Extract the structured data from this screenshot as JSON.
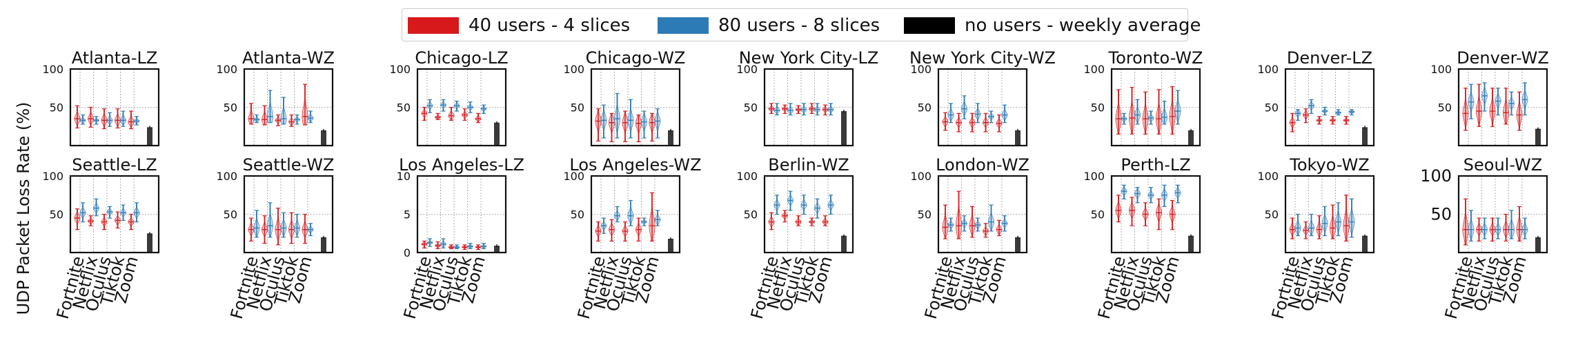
{
  "legend": [
    {
      "label": "40 users - 4 slices",
      "color": "#d7191c"
    },
    {
      "label": "80 users - 8 slices",
      "color": "#2c7bb6"
    },
    {
      "label": "no users - weekly average",
      "color": "#000000"
    }
  ],
  "ylabel": "UDP Packet Loss Rate (%)",
  "chart_data": {
    "type": "violin",
    "categories": [
      "Fortnite",
      "Netflix",
      "Oculus",
      "Tiktok",
      "Zoom"
    ],
    "ylabel": "UDP Packet Loss Rate (%)",
    "grid": true,
    "legend_position": "top-center",
    "panels": [
      {
        "title": "Atlanta-LZ",
        "ylim": [
          0,
          100
        ],
        "yticks": [
          50,
          100
        ],
        "s40": [
          [
            23,
            52,
            35
          ],
          [
            24,
            50,
            35
          ],
          [
            22,
            48,
            33
          ],
          [
            23,
            48,
            33
          ],
          [
            22,
            45,
            31
          ]
        ],
        "s80": [
          [
            28,
            40,
            33
          ],
          [
            28,
            38,
            33
          ],
          [
            25,
            43,
            33
          ],
          [
            25,
            45,
            33
          ],
          [
            27,
            38,
            32
          ]
        ],
        "baseline": 24
      },
      {
        "title": "Atlanta-WZ",
        "ylim": [
          0,
          100
        ],
        "yticks": [
          50,
          100
        ],
        "s40": [
          [
            28,
            55,
            35
          ],
          [
            27,
            52,
            34
          ],
          [
            26,
            40,
            33
          ],
          [
            25,
            40,
            31
          ],
          [
            27,
            80,
            38
          ]
        ],
        "s80": [
          [
            30,
            40,
            34
          ],
          [
            30,
            72,
            38
          ],
          [
            28,
            63,
            35
          ],
          [
            28,
            40,
            34
          ],
          [
            30,
            45,
            36
          ]
        ],
        "baseline": 20
      },
      {
        "title": "Chicago-LZ",
        "ylim": [
          0,
          100
        ],
        "yticks": [
          50,
          100
        ],
        "s40": [
          [
            33,
            50,
            42
          ],
          [
            34,
            42,
            37
          ],
          [
            33,
            50,
            39
          ],
          [
            33,
            48,
            40
          ],
          [
            30,
            42,
            35
          ]
        ],
        "s80": [
          [
            43,
            60,
            52
          ],
          [
            45,
            60,
            53
          ],
          [
            45,
            58,
            52
          ],
          [
            43,
            57,
            50
          ],
          [
            42,
            53,
            48
          ]
        ],
        "baseline": 30
      },
      {
        "title": "Chicago-WZ",
        "ylim": [
          0,
          100
        ],
        "yticks": [
          50,
          100
        ],
        "s40": [
          [
            6,
            48,
            32
          ],
          [
            5,
            42,
            30
          ],
          [
            5,
            45,
            30
          ],
          [
            5,
            40,
            29
          ],
          [
            6,
            42,
            30
          ]
        ],
        "s80": [
          [
            10,
            53,
            33
          ],
          [
            10,
            68,
            35
          ],
          [
            10,
            60,
            33
          ],
          [
            10,
            45,
            31
          ],
          [
            10,
            48,
            32
          ]
        ],
        "baseline": 20
      },
      {
        "title": "New York City-LZ",
        "ylim": [
          0,
          100
        ],
        "yticks": [
          50,
          100
        ],
        "s40": [
          [
            42,
            55,
            48
          ],
          [
            42,
            53,
            48
          ],
          [
            42,
            52,
            47
          ],
          [
            42,
            55,
            48
          ],
          [
            40,
            53,
            47
          ]
        ],
        "s80": [
          [
            40,
            55,
            46
          ],
          [
            40,
            55,
            46
          ],
          [
            40,
            55,
            47
          ],
          [
            40,
            55,
            47
          ],
          [
            40,
            55,
            47
          ]
        ],
        "baseline": 45
      },
      {
        "title": "New York City-WZ",
        "ylim": [
          0,
          100
        ],
        "yticks": [
          50,
          100
        ],
        "s40": [
          [
            20,
            43,
            31
          ],
          [
            18,
            42,
            30
          ],
          [
            18,
            42,
            30
          ],
          [
            18,
            42,
            30
          ],
          [
            18,
            40,
            29
          ]
        ],
        "s80": [
          [
            30,
            55,
            40
          ],
          [
            35,
            65,
            48
          ],
          [
            30,
            55,
            41
          ],
          [
            30,
            45,
            38
          ],
          [
            30,
            53,
            40
          ]
        ],
        "baseline": 20
      },
      {
        "title": "Toronto-WZ",
        "ylim": [
          0,
          100
        ],
        "yticks": [
          50,
          100
        ],
        "s40": [
          [
            15,
            73,
            35
          ],
          [
            15,
            76,
            36
          ],
          [
            15,
            70,
            35
          ],
          [
            15,
            73,
            35
          ],
          [
            15,
            77,
            38
          ]
        ],
        "s80": [
          [
            28,
            42,
            35
          ],
          [
            28,
            60,
            40
          ],
          [
            28,
            45,
            36
          ],
          [
            28,
            58,
            37
          ],
          [
            28,
            72,
            45
          ]
        ],
        "baseline": 20
      },
      {
        "title": "Denver-LZ",
        "ylim": [
          0,
          100
        ],
        "yticks": [
          50,
          100
        ],
        "s40": [
          [
            18,
            42,
            30
          ],
          [
            30,
            48,
            40
          ],
          [
            28,
            38,
            33
          ],
          [
            28,
            38,
            33
          ],
          [
            28,
            38,
            33
          ]
        ],
        "s80": [
          [
            33,
            47,
            42
          ],
          [
            42,
            60,
            52
          ],
          [
            40,
            50,
            45
          ],
          [
            40,
            47,
            43
          ],
          [
            40,
            47,
            44
          ]
        ],
        "baseline": 24
      },
      {
        "title": "Denver-WZ",
        "ylim": [
          0,
          100
        ],
        "yticks": [
          50,
          100
        ],
        "s40": [
          [
            20,
            75,
            42
          ],
          [
            25,
            80,
            45
          ],
          [
            25,
            75,
            45
          ],
          [
            28,
            75,
            43
          ],
          [
            20,
            70,
            40
          ]
        ],
        "s80": [
          [
            35,
            80,
            57
          ],
          [
            45,
            82,
            65
          ],
          [
            40,
            75,
            58
          ],
          [
            40,
            70,
            55
          ],
          [
            40,
            82,
            60
          ]
        ],
        "baseline": 22
      },
      {
        "title": "Seattle-LZ",
        "ylim": [
          0,
          100
        ],
        "yticks": [
          50,
          100
        ],
        "s40": [
          [
            30,
            57,
            45
          ],
          [
            35,
            48,
            41
          ],
          [
            30,
            50,
            40
          ],
          [
            32,
            53,
            42
          ],
          [
            30,
            50,
            40
          ]
        ],
        "s80": [
          [
            40,
            65,
            52
          ],
          [
            48,
            70,
            58
          ],
          [
            45,
            60,
            53
          ],
          [
            42,
            62,
            52
          ],
          [
            40,
            65,
            52
          ]
        ],
        "baseline": 25
      },
      {
        "title": "Seattle-WZ",
        "ylim": [
          0,
          100
        ],
        "yticks": [
          50,
          100
        ],
        "s40": [
          [
            15,
            45,
            30
          ],
          [
            12,
            48,
            30
          ],
          [
            10,
            58,
            30
          ],
          [
            12,
            52,
            30
          ],
          [
            12,
            50,
            30
          ]
        ],
        "s80": [
          [
            20,
            55,
            32
          ],
          [
            20,
            65,
            35
          ],
          [
            20,
            52,
            32
          ],
          [
            20,
            50,
            32
          ],
          [
            22,
            38,
            30
          ]
        ],
        "baseline": 20
      },
      {
        "title": "Los Angeles-LZ",
        "ylim": [
          0,
          10
        ],
        "yticks": [
          0,
          5,
          10
        ],
        "s40": [
          [
            0.6,
            1.5,
            1.1
          ],
          [
            0.5,
            1.4,
            0.9
          ],
          [
            0.5,
            1.0,
            0.7
          ],
          [
            0.4,
            1.0,
            0.7
          ],
          [
            0.4,
            1.0,
            0.7
          ]
        ],
        "s80": [
          [
            0.8,
            1.8,
            1.3
          ],
          [
            0.6,
            1.8,
            1.1
          ],
          [
            0.5,
            1.0,
            0.7
          ],
          [
            0.5,
            1.2,
            0.8
          ],
          [
            0.5,
            1.2,
            0.8
          ]
        ],
        "baseline": 0.9
      },
      {
        "title": "Los Angeles-WZ",
        "ylim": [
          0,
          100
        ],
        "yticks": [
          50,
          100
        ],
        "s40": [
          [
            15,
            40,
            28
          ],
          [
            15,
            43,
            30
          ],
          [
            15,
            40,
            28
          ],
          [
            15,
            45,
            30
          ],
          [
            15,
            78,
            35
          ]
        ],
        "s80": [
          [
            25,
            45,
            35
          ],
          [
            40,
            60,
            48
          ],
          [
            35,
            68,
            48
          ],
          [
            35,
            45,
            40
          ],
          [
            35,
            55,
            43
          ]
        ],
        "baseline": 18
      },
      {
        "title": "Berlin-WZ",
        "ylim": [
          0,
          100
        ],
        "yticks": [
          50,
          100
        ],
        "s40": [
          [
            30,
            52,
            40
          ],
          [
            40,
            55,
            48
          ],
          [
            35,
            48,
            40
          ],
          [
            35,
            45,
            40
          ],
          [
            35,
            48,
            40
          ]
        ],
        "s80": [
          [
            50,
            75,
            62
          ],
          [
            55,
            80,
            68
          ],
          [
            50,
            75,
            62
          ],
          [
            45,
            70,
            58
          ],
          [
            50,
            75,
            62
          ]
        ],
        "baseline": 22
      },
      {
        "title": "London-WZ",
        "ylim": [
          0,
          100
        ],
        "yticks": [
          50,
          100
        ],
        "s40": [
          [
            18,
            62,
            33
          ],
          [
            18,
            80,
            35
          ],
          [
            20,
            60,
            35
          ],
          [
            20,
            38,
            28
          ],
          [
            22,
            42,
            30
          ]
        ],
        "s80": [
          [
            28,
            45,
            36
          ],
          [
            28,
            48,
            38
          ],
          [
            28,
            45,
            36
          ],
          [
            28,
            62,
            40
          ],
          [
            28,
            48,
            38
          ]
        ],
        "baseline": 20
      },
      {
        "title": "Perth-LZ",
        "ylim": [
          0,
          100
        ],
        "yticks": [
          50,
          100
        ],
        "s40": [
          [
            40,
            75,
            55
          ],
          [
            35,
            72,
            55
          ],
          [
            35,
            65,
            50
          ],
          [
            30,
            70,
            52
          ],
          [
            30,
            68,
            50
          ]
        ],
        "s80": [
          [
            70,
            88,
            80
          ],
          [
            65,
            85,
            77
          ],
          [
            65,
            85,
            75
          ],
          [
            60,
            88,
            75
          ],
          [
            65,
            88,
            78
          ]
        ],
        "baseline": 22
      },
      {
        "title": "Tokyo-WZ",
        "ylim": [
          0,
          100
        ],
        "yticks": [
          50,
          100
        ],
        "s40": [
          [
            18,
            45,
            30
          ],
          [
            18,
            40,
            29
          ],
          [
            18,
            48,
            30
          ],
          [
            18,
            62,
            32
          ],
          [
            15,
            75,
            35
          ]
        ],
        "s80": [
          [
            22,
            50,
            32
          ],
          [
            22,
            50,
            32
          ],
          [
            22,
            60,
            38
          ],
          [
            22,
            65,
            40
          ],
          [
            20,
            70,
            40
          ]
        ],
        "baseline": 22
      },
      {
        "title": "Seoul-WZ",
        "ylim": [
          0,
          100
        ],
        "yticks": [
          50,
          100
        ],
        "s40": [
          [
            10,
            70,
            30
          ],
          [
            15,
            45,
            30
          ],
          [
            15,
            45,
            30
          ],
          [
            15,
            50,
            30
          ],
          [
            15,
            60,
            30
          ]
        ],
        "s80": [
          [
            15,
            55,
            30
          ],
          [
            18,
            45,
            30
          ],
          [
            18,
            45,
            30
          ],
          [
            18,
            55,
            30
          ],
          [
            18,
            45,
            30
          ]
        ],
        "baseline": 20
      }
    ]
  }
}
